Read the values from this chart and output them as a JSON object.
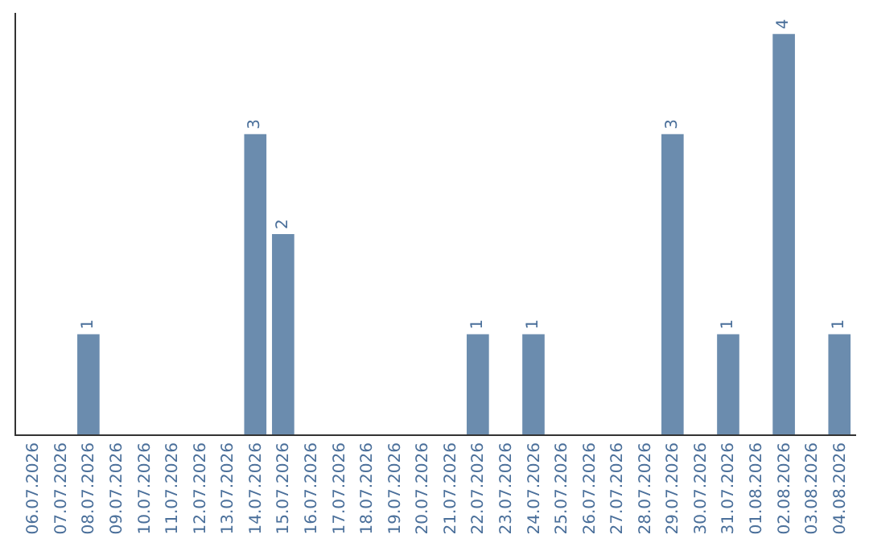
{
  "chart_data": {
    "type": "bar",
    "categories": [
      "06.07.2026",
      "07.07.2026",
      "08.07.2026",
      "09.07.2026",
      "10.07.2026",
      "11.07.2026",
      "12.07.2026",
      "13.07.2026",
      "14.07.2026",
      "15.07.2026",
      "16.07.2026",
      "17.07.2026",
      "18.07.2026",
      "19.07.2026",
      "20.07.2026",
      "21.07.2026",
      "22.07.2026",
      "23.07.2026",
      "24.07.2026",
      "25.07.2026",
      "26.07.2026",
      "27.07.2026",
      "28.07.2026",
      "29.07.2026",
      "30.07.2026",
      "31.07.2026",
      "01.08.2026",
      "02.08.2026",
      "03.08.2026",
      "04.08.2026"
    ],
    "values": [
      0,
      0,
      1,
      0,
      0,
      0,
      0,
      0,
      3,
      2,
      0,
      0,
      0,
      0,
      0,
      0,
      1,
      0,
      1,
      0,
      0,
      0,
      0,
      3,
      0,
      1,
      0,
      4,
      0,
      1
    ],
    "value_labels": [
      null,
      null,
      "1",
      null,
      null,
      null,
      null,
      null,
      "3",
      "2",
      null,
      null,
      null,
      null,
      null,
      null,
      "1",
      null,
      "1",
      null,
      null,
      null,
      null,
      "3",
      null,
      "1",
      null,
      "4",
      null,
      "1"
    ],
    "color": "#6b8cae",
    "tick_labels": "x",
    "legend": false
  }
}
